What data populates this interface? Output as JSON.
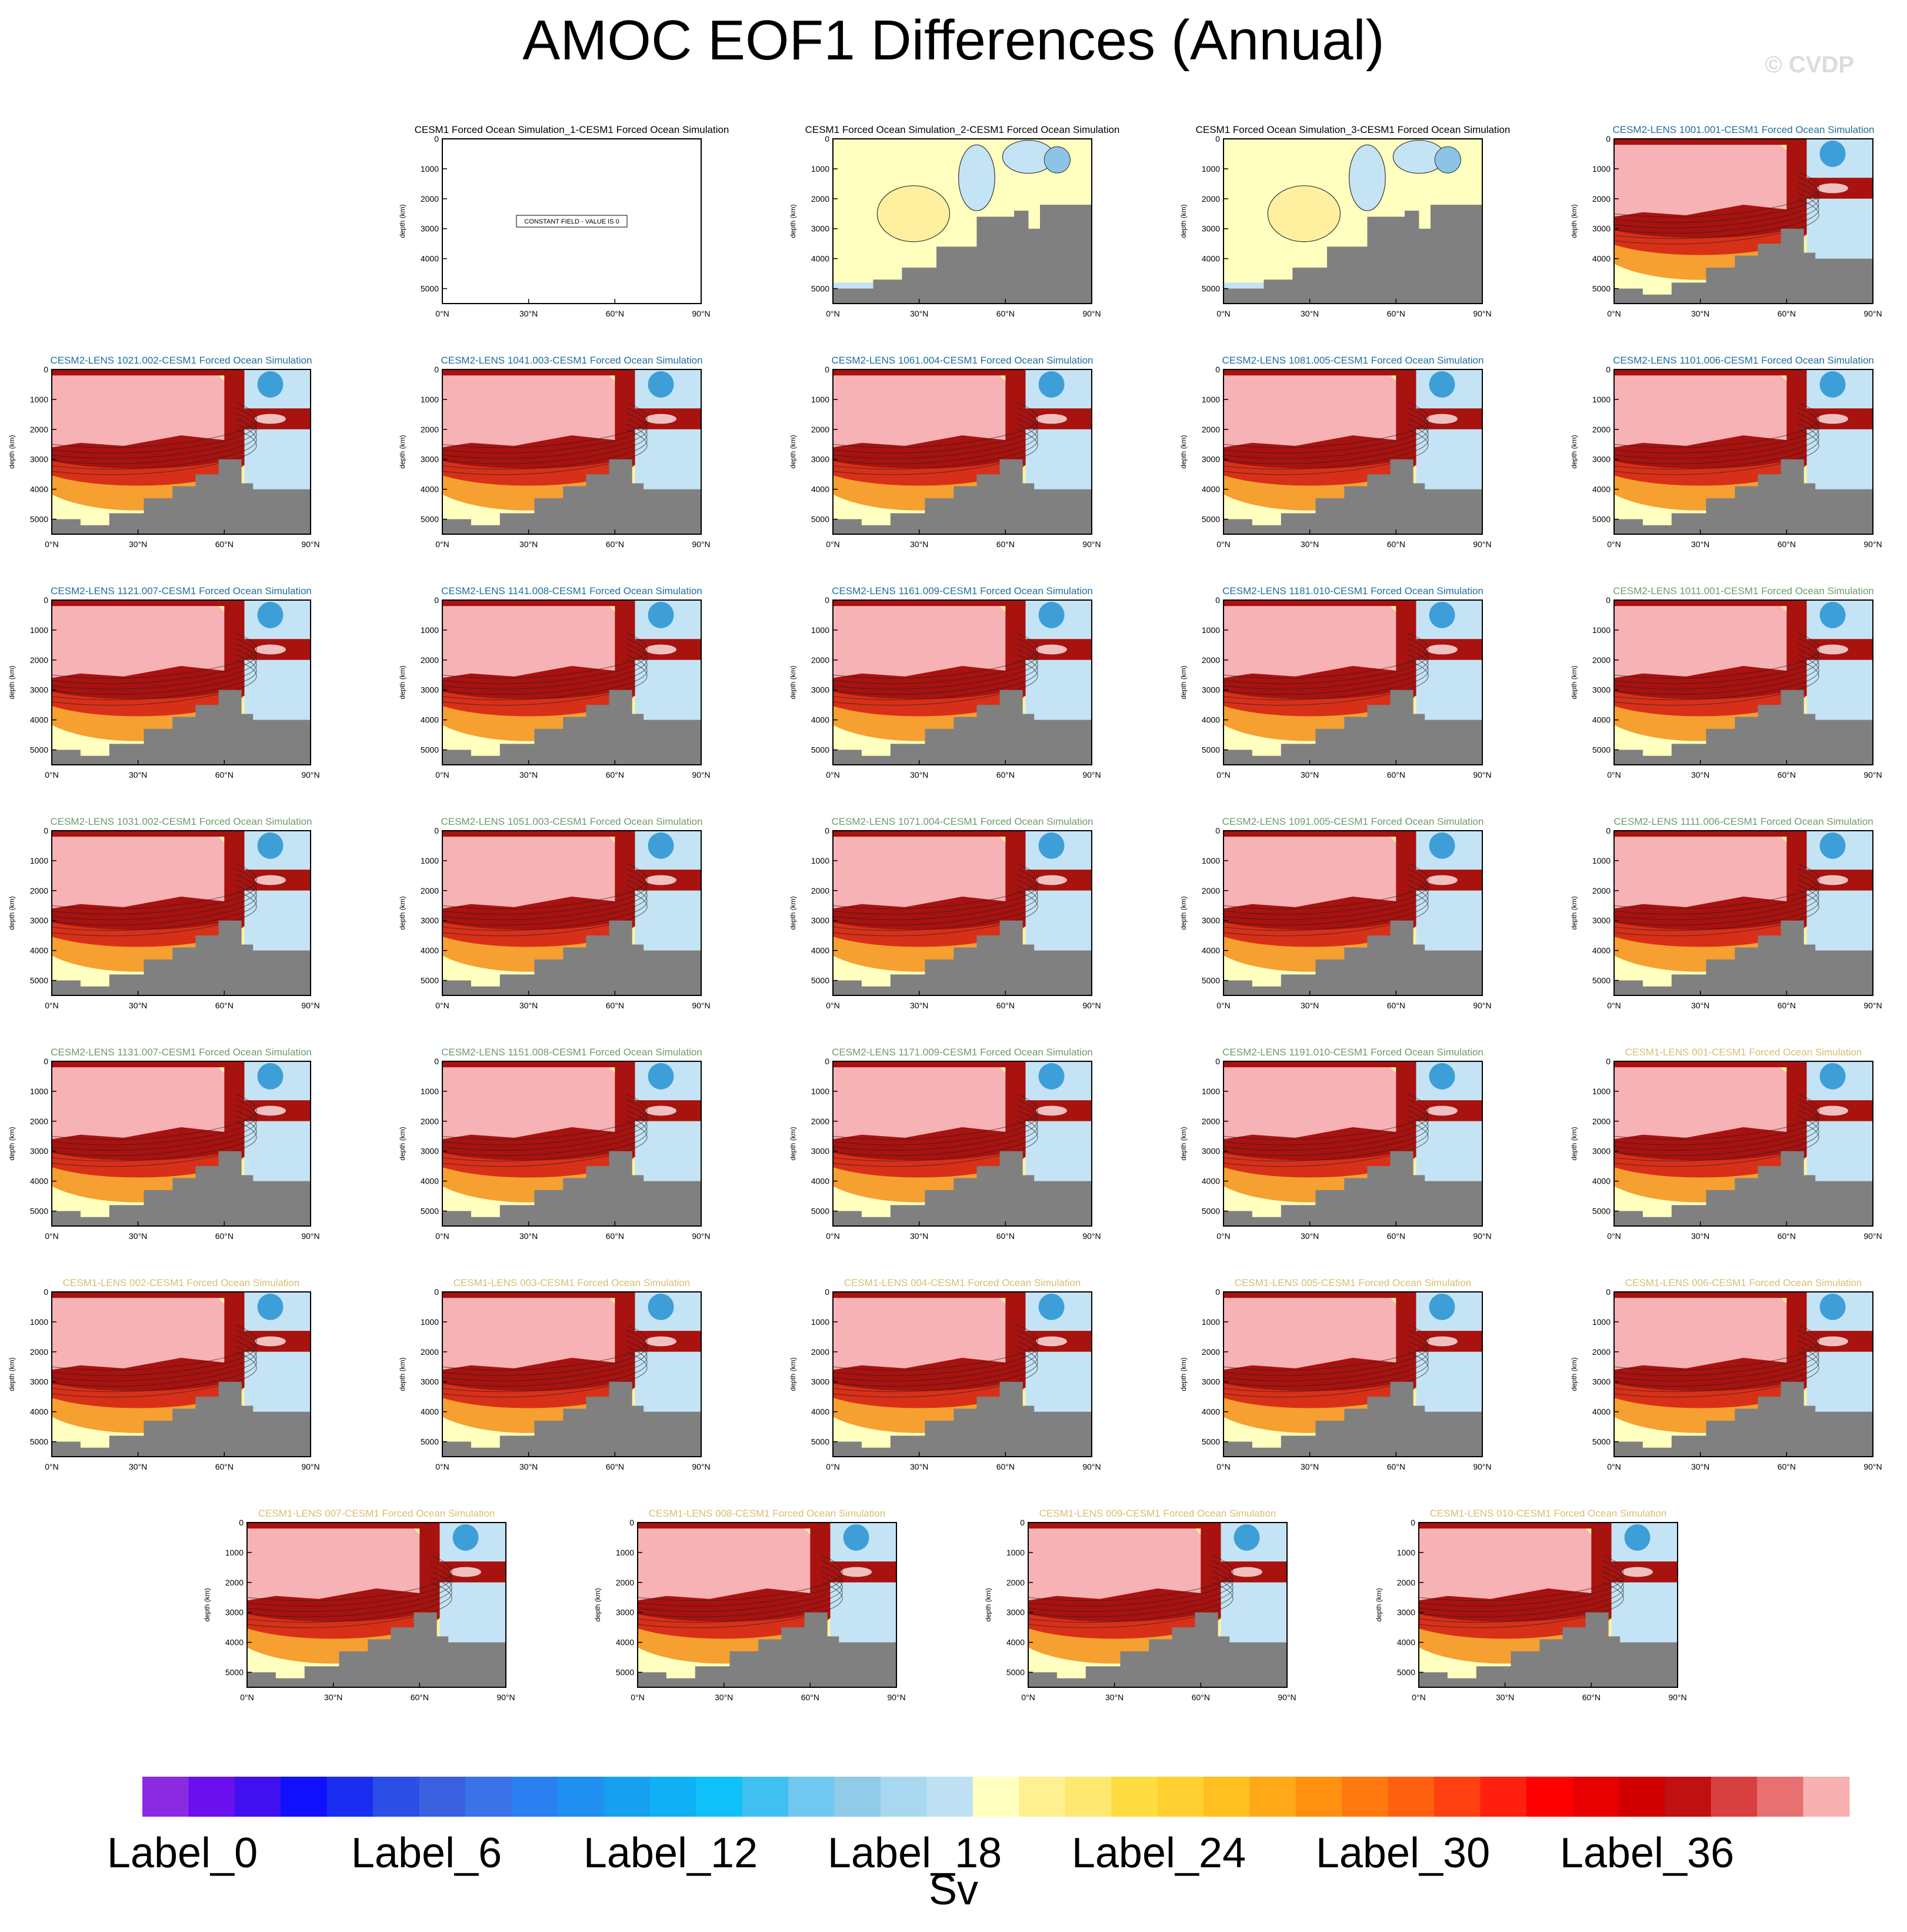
{
  "title": "AMOC EOF1 Differences (Annual)",
  "copyright": "© CVDP",
  "colors": {
    "land": "#808080",
    "pink": "#f7b2b6",
    "darkred": "#a8120f",
    "red": "#d83018",
    "orange": "#f5a030",
    "yellow": "#fff3a0",
    "paleyellow": "#ffffc0",
    "lightblue": "#c4e4f5",
    "blue": "#3e9fd8",
    "title_blue": "#1f6e9c",
    "title_green": "#6e9a6e",
    "title_gold": "#d8be70",
    "title_black": "#000000"
  },
  "chart_data": {
    "type": "heatmap",
    "ylabel": "depth (km)",
    "xlim": [
      0,
      90
    ],
    "ylim": [
      0,
      5500
    ],
    "x_ticks": [
      "0°N",
      "30°N",
      "60°N",
      "90°N"
    ],
    "y_ticks": [
      "0",
      "1000",
      "2000",
      "3000",
      "4000",
      "5000"
    ],
    "panels": [
      {
        "title": "CESM1 Forced Ocean Simulation_1-CESM1 Forced Ocean Simulation",
        "color": "black",
        "kind": "constant",
        "note": "CONSTANT FIELD - VALUE IS 0"
      },
      {
        "title": "CESM1 Forced Ocean Simulation_2-CESM1 Forced Ocean Simulation",
        "color": "black",
        "kind": "weak"
      },
      {
        "title": "CESM1 Forced Ocean Simulation_3-CESM1 Forced Ocean Simulation",
        "color": "black",
        "kind": "weak"
      },
      {
        "title": "CESM2-LENS 1001.001-CESM1 Forced Ocean Simulation",
        "color": "blue",
        "kind": "strong"
      },
      {
        "title": "CESM2-LENS 1021.002-CESM1 Forced Ocean Simulation",
        "color": "blue",
        "kind": "strong"
      },
      {
        "title": "CESM2-LENS 1041.003-CESM1 Forced Ocean Simulation",
        "color": "blue",
        "kind": "strong"
      },
      {
        "title": "CESM2-LENS 1061.004-CESM1 Forced Ocean Simulation",
        "color": "blue",
        "kind": "strong"
      },
      {
        "title": "CESM2-LENS 1081.005-CESM1 Forced Ocean Simulation",
        "color": "blue",
        "kind": "strong"
      },
      {
        "title": "CESM2-LENS 1101.006-CESM1 Forced Ocean Simulation",
        "color": "blue",
        "kind": "strong"
      },
      {
        "title": "CESM2-LENS 1121.007-CESM1 Forced Ocean Simulation",
        "color": "blue",
        "kind": "strong"
      },
      {
        "title": "CESM2-LENS 1141.008-CESM1 Forced Ocean Simulation",
        "color": "blue",
        "kind": "strong"
      },
      {
        "title": "CESM2-LENS 1161.009-CESM1 Forced Ocean Simulation",
        "color": "blue",
        "kind": "strong"
      },
      {
        "title": "CESM2-LENS 1181.010-CESM1 Forced Ocean Simulation",
        "color": "blue",
        "kind": "strong"
      },
      {
        "title": "CESM2-LENS 1011.001-CESM1 Forced Ocean Simulation",
        "color": "green",
        "kind": "strong"
      },
      {
        "title": "CESM2-LENS 1031.002-CESM1 Forced Ocean Simulation",
        "color": "green",
        "kind": "strong"
      },
      {
        "title": "CESM2-LENS 1051.003-CESM1 Forced Ocean Simulation",
        "color": "green",
        "kind": "strong"
      },
      {
        "title": "CESM2-LENS 1071.004-CESM1 Forced Ocean Simulation",
        "color": "green",
        "kind": "strong"
      },
      {
        "title": "CESM2-LENS 1091.005-CESM1 Forced Ocean Simulation",
        "color": "green",
        "kind": "strong"
      },
      {
        "title": "CESM2-LENS 1111.006-CESM1 Forced Ocean Simulation",
        "color": "green",
        "kind": "strong"
      },
      {
        "title": "CESM2-LENS 1131.007-CESM1 Forced Ocean Simulation",
        "color": "green",
        "kind": "strong"
      },
      {
        "title": "CESM2-LENS 1151.008-CESM1 Forced Ocean Simulation",
        "color": "green",
        "kind": "strong"
      },
      {
        "title": "CESM2-LENS 1171.009-CESM1 Forced Ocean Simulation",
        "color": "green",
        "kind": "strong"
      },
      {
        "title": "CESM2-LENS 1191.010-CESM1 Forced Ocean Simulation",
        "color": "green",
        "kind": "strong"
      },
      {
        "title": "CESM1-LENS 001-CESM1 Forced Ocean Simulation",
        "color": "gold",
        "kind": "strong"
      },
      {
        "title": "CESM1-LENS 002-CESM1 Forced Ocean Simulation",
        "color": "gold",
        "kind": "strong"
      },
      {
        "title": "CESM1-LENS 003-CESM1 Forced Ocean Simulation",
        "color": "gold",
        "kind": "strong"
      },
      {
        "title": "CESM1-LENS 004-CESM1 Forced Ocean Simulation",
        "color": "gold",
        "kind": "strong"
      },
      {
        "title": "CESM1-LENS 005-CESM1 Forced Ocean Simulation",
        "color": "gold",
        "kind": "strong"
      },
      {
        "title": "CESM1-LENS 006-CESM1 Forced Ocean Simulation",
        "color": "gold",
        "kind": "strong"
      },
      {
        "title": "CESM1-LENS 007-CESM1 Forced Ocean Simulation",
        "color": "gold",
        "kind": "strong"
      },
      {
        "title": "CESM1-LENS 008-CESM1 Forced Ocean Simulation",
        "color": "gold",
        "kind": "strong"
      },
      {
        "title": "CESM1-LENS 009-CESM1 Forced Ocean Simulation",
        "color": "gold",
        "kind": "strong"
      },
      {
        "title": "CESM1-LENS 010-CESM1 Forced Ocean Simulation",
        "color": "gold",
        "kind": "strong"
      }
    ],
    "colorbar": {
      "units": "Sv",
      "labels": [
        "Label_0",
        "Label_6",
        "Label_12",
        "Label_18",
        "Label_24",
        "Label_30",
        "Label_36"
      ],
      "colors": [
        "#8a2be2",
        "#6a10ee",
        "#4010f0",
        "#1010ff",
        "#1a2ef2",
        "#2a4ee6",
        "#3a60e0",
        "#3a72e8",
        "#2a80f0",
        "#2090f0",
        "#18a0f0",
        "#10b0f4",
        "#10c0f8",
        "#40c0f0",
        "#70c8f0",
        "#90cce8",
        "#a8d8f0",
        "#c0e0f4",
        "#ffffc0",
        "#fff090",
        "#ffe870",
        "#ffdc40",
        "#ffd030",
        "#ffc020",
        "#ffa818",
        "#ff9010",
        "#ff7810",
        "#ff6010",
        "#ff4010",
        "#ff2010",
        "#ff0000",
        "#e80000",
        "#d00000",
        "#c01010",
        "#d84040",
        "#e87070",
        "#f8b0b0"
      ]
    }
  }
}
